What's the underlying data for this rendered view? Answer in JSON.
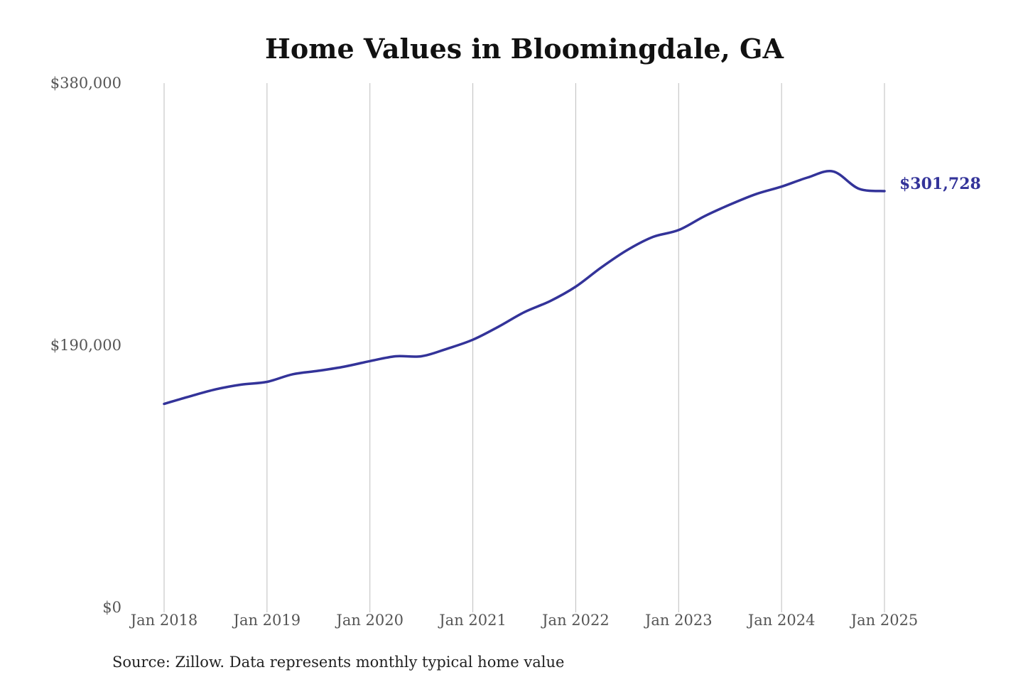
{
  "chart_data": {
    "type": "line",
    "title": "Home Values in Bloomingdale, GA",
    "source": "Source: Zillow. Data represents monthly typical home value",
    "ylim": [
      0,
      380000
    ],
    "y_ticks": [
      {
        "value": 0,
        "label": "$0"
      },
      {
        "value": 190000,
        "label": "$190,000"
      },
      {
        "value": 380000,
        "label": "$380,000"
      }
    ],
    "x_ticks": [
      {
        "value": "2018-01",
        "label": "Jan 2018"
      },
      {
        "value": "2019-01",
        "label": "Jan 2019"
      },
      {
        "value": "2020-01",
        "label": "Jan 2020"
      },
      {
        "value": "2021-01",
        "label": "Jan 2021"
      },
      {
        "value": "2022-01",
        "label": "Jan 2022"
      },
      {
        "value": "2023-01",
        "label": "Jan 2023"
      },
      {
        "value": "2024-01",
        "label": "Jan 2024"
      },
      {
        "value": "2025-01",
        "label": "Jan 2025"
      }
    ],
    "grid": {
      "vertical": true,
      "horizontal": false
    },
    "line_color": "#333399",
    "end_label": "$301,728",
    "series": [
      {
        "points": [
          {
            "x": "2018-01",
            "y": 147500
          },
          {
            "x": "2018-04",
            "y": 153000
          },
          {
            "x": "2018-07",
            "y": 158000
          },
          {
            "x": "2018-10",
            "y": 161500
          },
          {
            "x": "2019-01",
            "y": 163500
          },
          {
            "x": "2019-04",
            "y": 169000
          },
          {
            "x": "2019-07",
            "y": 171500
          },
          {
            "x": "2019-10",
            "y": 174500
          },
          {
            "x": "2020-01",
            "y": 178500
          },
          {
            "x": "2020-04",
            "y": 182000
          },
          {
            "x": "2020-07",
            "y": 182000
          },
          {
            "x": "2020-10",
            "y": 187500
          },
          {
            "x": "2021-01",
            "y": 194000
          },
          {
            "x": "2021-04",
            "y": 203500
          },
          {
            "x": "2021-07",
            "y": 214000
          },
          {
            "x": "2021-10",
            "y": 222000
          },
          {
            "x": "2022-01",
            "y": 232500
          },
          {
            "x": "2022-04",
            "y": 246500
          },
          {
            "x": "2022-07",
            "y": 259000
          },
          {
            "x": "2022-10",
            "y": 268500
          },
          {
            "x": "2023-01",
            "y": 273500
          },
          {
            "x": "2023-04",
            "y": 283500
          },
          {
            "x": "2023-07",
            "y": 292000
          },
          {
            "x": "2023-10",
            "y": 299500
          },
          {
            "x": "2024-01",
            "y": 305000
          },
          {
            "x": "2024-04",
            "y": 311500
          },
          {
            "x": "2024-07",
            "y": 316000
          },
          {
            "x": "2024-10",
            "y": 303500
          },
          {
            "x": "2025-01",
            "y": 301728
          }
        ]
      }
    ]
  }
}
